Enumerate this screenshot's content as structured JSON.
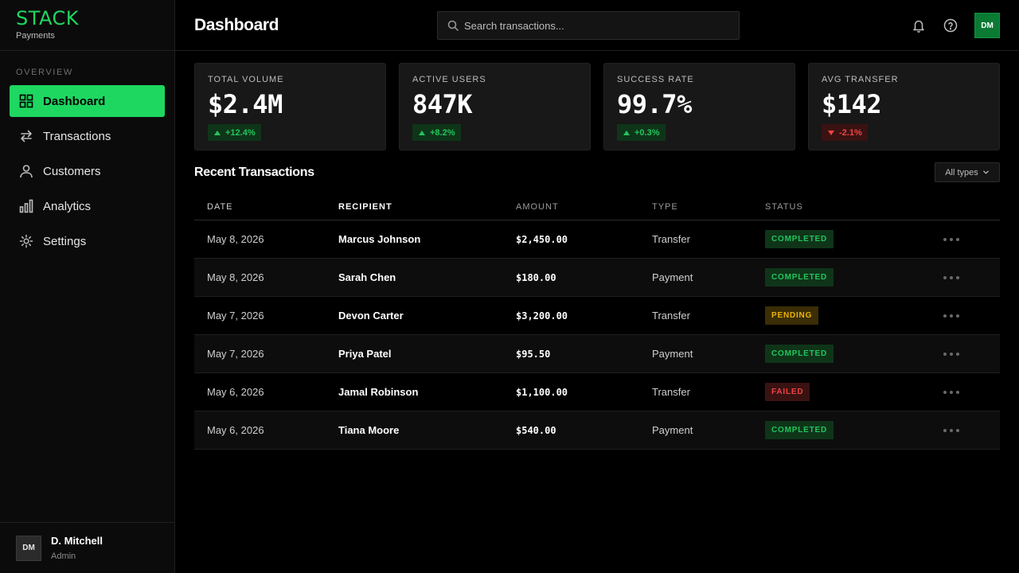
{
  "brand": {
    "name": "STACK",
    "subtitle": "Payments",
    "accent": "#1ed760"
  },
  "sidebar": {
    "section_label": "OVERVIEW",
    "items": [
      {
        "label": "Dashboard",
        "icon": "grid-icon",
        "active": true
      },
      {
        "label": "Transactions",
        "icon": "arrows-swap-icon",
        "active": false
      },
      {
        "label": "Customers",
        "icon": "user-icon",
        "active": false
      },
      {
        "label": "Analytics",
        "icon": "bar-chart-icon",
        "active": false
      },
      {
        "label": "Settings",
        "icon": "gear-icon",
        "active": false
      }
    ],
    "user": {
      "initials": "DM",
      "name": "D. Mitchell",
      "role": "Admin"
    }
  },
  "header": {
    "title": "Dashboard",
    "search_placeholder": "Search transactions...",
    "search_value": "",
    "avatar_initials": "DM",
    "icons": [
      "bell-icon",
      "help-icon"
    ]
  },
  "stats": [
    {
      "label": "TOTAL VOLUME",
      "value": "$2.4M",
      "delta": "+12.4%",
      "direction": "up"
    },
    {
      "label": "ACTIVE USERS",
      "value": "847K",
      "delta": "+8.2%",
      "direction": "up"
    },
    {
      "label": "SUCCESS RATE",
      "value": "99.7%",
      "delta": "+0.3%",
      "direction": "up"
    },
    {
      "label": "AVG TRANSFER",
      "value": "$142",
      "delta": "-2.1%",
      "direction": "down"
    }
  ],
  "transactions": {
    "title": "Recent Transactions",
    "filter_label": "All types",
    "columns": [
      "DATE",
      "RECIPIENT",
      "AMOUNT",
      "TYPE",
      "STATUS"
    ],
    "rows": [
      {
        "date": "May 8, 2026",
        "recipient": "Marcus Johnson",
        "amount": "$2,450.00",
        "type": "Transfer",
        "status": "COMPLETED"
      },
      {
        "date": "May 8, 2026",
        "recipient": "Sarah Chen",
        "amount": "$180.00",
        "type": "Payment",
        "status": "COMPLETED"
      },
      {
        "date": "May 7, 2026",
        "recipient": "Devon Carter",
        "amount": "$3,200.00",
        "type": "Transfer",
        "status": "PENDING"
      },
      {
        "date": "May 7, 2026",
        "recipient": "Priya Patel",
        "amount": "$95.50",
        "type": "Payment",
        "status": "COMPLETED"
      },
      {
        "date": "May 6, 2026",
        "recipient": "Jamal Robinson",
        "amount": "$1,100.00",
        "type": "Transfer",
        "status": "FAILED"
      },
      {
        "date": "May 6, 2026",
        "recipient": "Tiana Moore",
        "amount": "$540.00",
        "type": "Payment",
        "status": "COMPLETED"
      }
    ]
  },
  "colors": {
    "success": "#22c55e",
    "warning": "#eab308",
    "danger": "#ef4444"
  }
}
